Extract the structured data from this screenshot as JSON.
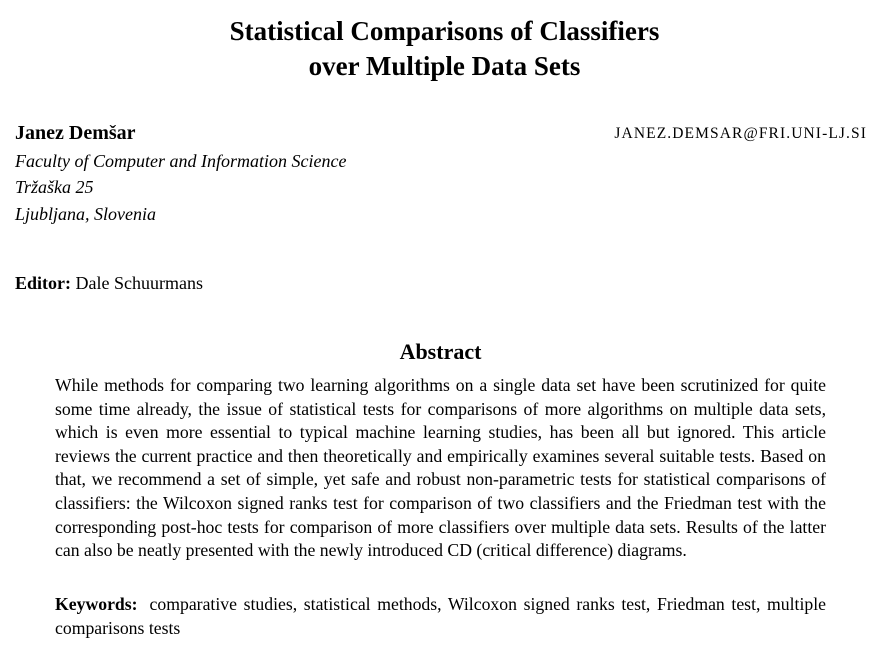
{
  "title": {
    "line1": "Statistical Comparisons of Classifiers",
    "line2": "over Multiple Data Sets"
  },
  "author": {
    "name": "Janez Demšar",
    "email": "JANEZ.DEMSAR@FRI.UNI-LJ.SI",
    "affiliation_line1": "Faculty of Computer and Information Science",
    "affiliation_line2": "Tržaška 25",
    "affiliation_line3": "Ljubljana, Slovenia"
  },
  "editor": {
    "label": "Editor:",
    "name": "Dale Schuurmans"
  },
  "abstract": {
    "heading": "Abstract",
    "text": "While methods for comparing two learning algorithms on a single data set have been scrutinized for quite some time already, the issue of statistical tests for comparisons of more algorithms on multiple data sets, which is even more essential to typical machine learning studies, has been all but ignored. This article reviews the current practice and then theoretically and empirically examines several suitable tests. Based on that, we recommend a set of simple, yet safe and robust non-parametric tests for statistical comparisons of classifiers: the Wilcoxon signed ranks test for comparison of two classifiers and the Friedman test with the corresponding post-hoc tests for comparison of more classifiers over multiple data sets. Results of the latter can also be neatly presented with the newly introduced CD (critical difference) diagrams."
  },
  "keywords": {
    "label": "Keywords:",
    "text": "comparative studies, statistical methods, Wilcoxon signed ranks test, Friedman test, multiple comparisons tests"
  }
}
